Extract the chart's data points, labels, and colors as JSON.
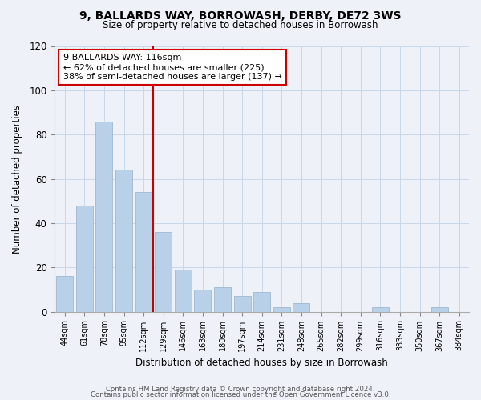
{
  "title": "9, BALLARDS WAY, BORROWASH, DERBY, DE72 3WS",
  "subtitle": "Size of property relative to detached houses in Borrowash",
  "xlabel": "Distribution of detached houses by size in Borrowash",
  "ylabel": "Number of detached properties",
  "bar_labels": [
    "44sqm",
    "61sqm",
    "78sqm",
    "95sqm",
    "112sqm",
    "129sqm",
    "146sqm",
    "163sqm",
    "180sqm",
    "197sqm",
    "214sqm",
    "231sqm",
    "248sqm",
    "265sqm",
    "282sqm",
    "299sqm",
    "316sqm",
    "333sqm",
    "350sqm",
    "367sqm",
    "384sqm"
  ],
  "bar_values": [
    16,
    48,
    86,
    64,
    54,
    36,
    19,
    10,
    11,
    7,
    9,
    2,
    4,
    0,
    0,
    0,
    2,
    0,
    0,
    2,
    0
  ],
  "bar_color": "#b8d0e8",
  "vline_color": "#cc0000",
  "vline_pos": 4.5,
  "annotation_text": "9 BALLARDS WAY: 116sqm\n← 62% of detached houses are smaller (225)\n38% of semi-detached houses are larger (137) →",
  "annotation_box_facecolor": "#ffffff",
  "annotation_box_edgecolor": "#cc0000",
  "ylim": [
    0,
    120
  ],
  "yticks": [
    0,
    20,
    40,
    60,
    80,
    100,
    120
  ],
  "grid_color": "#c8d8e8",
  "background_color": "#eef2f8",
  "footer_line1": "Contains HM Land Registry data © Crown copyright and database right 2024.",
  "footer_line2": "Contains public sector information licensed under the Open Government Licence v3.0."
}
